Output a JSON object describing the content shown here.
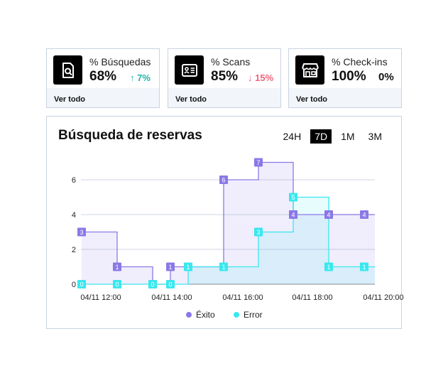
{
  "cards": [
    {
      "label": "% Búsquedas",
      "value": "68%",
      "delta": "7%",
      "arrow": "↑",
      "trend": "up",
      "footer": "Ver todo",
      "icon": "search-document-icon"
    },
    {
      "label": "% Scans",
      "value": "85%",
      "delta": "15%",
      "arrow": "↓",
      "trend": "down",
      "footer": "Ver todo",
      "icon": "id-card-icon"
    },
    {
      "label": "% Check-ins",
      "value": "100%",
      "delta": "0%",
      "arrow": "",
      "trend": "flat",
      "footer": "Ver todo",
      "icon": "storefront-icon"
    }
  ],
  "panel": {
    "title": "Búsqueda de reservas",
    "ranges": [
      "24H",
      "7D",
      "1M",
      "3M"
    ],
    "active_range": "7D"
  },
  "colors": {
    "exito": "#8b78e6",
    "error": "#39e8ee",
    "up": "#1bb5a6",
    "down": "#f0637a"
  },
  "chart_data": {
    "type": "line",
    "step": true,
    "x": [
      "12:00",
      "13:00",
      "14:00",
      "14:30",
      "15:00",
      "16:00",
      "17:00",
      "18:00",
      "19:00",
      "20:00"
    ],
    "xticks": [
      "04/11 12:00",
      "04/11 14:00",
      "04/11 16:00",
      "04/11 18:00",
      "04/11 20:00"
    ],
    "yticks": [
      0,
      2,
      4,
      6
    ],
    "ylim": [
      0,
      7.5
    ],
    "series": [
      {
        "name": "Éxito",
        "color": "#8b78e6",
        "values": [
          3,
          1,
          0,
          1,
          1,
          6,
          7,
          4,
          4,
          4
        ]
      },
      {
        "name": "Error",
        "color": "#39e8ee",
        "values": [
          0,
          0,
          0,
          0,
          1,
          1,
          3,
          5,
          1,
          1
        ]
      }
    ],
    "legend_position": "bottom"
  }
}
